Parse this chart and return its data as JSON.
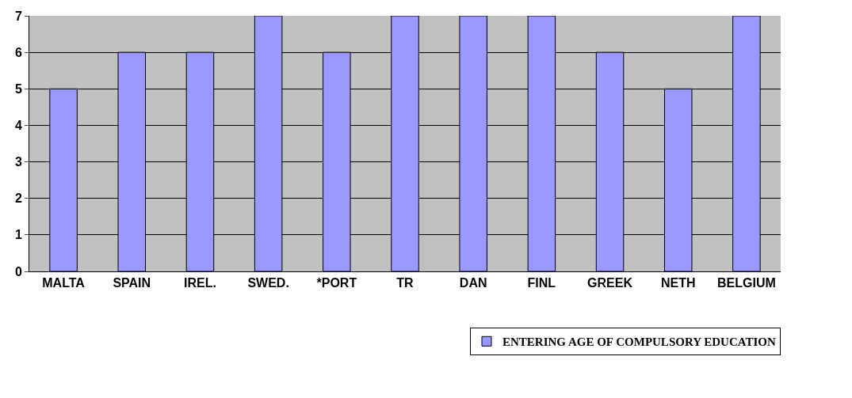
{
  "chart_data": {
    "type": "bar",
    "categories": [
      "MALTA",
      "SPAIN",
      "IREL.",
      "SWED.",
      "*PORT",
      "TR",
      "DAN",
      "FINL",
      "GREEK",
      "NETH",
      "BELGIUM"
    ],
    "series": [
      {
        "name": "ENTERING AGE OF COMPULSORY EDUCATION",
        "color": "#9999ff",
        "values": [
          5,
          6,
          6,
          7,
          6,
          7,
          7,
          7,
          6,
          5,
          7
        ]
      }
    ],
    "ylim": [
      0,
      7
    ],
    "yticks": [
      0,
      1,
      2,
      3,
      4,
      5,
      6,
      7
    ],
    "grid": "y",
    "legend": "bottom right"
  }
}
